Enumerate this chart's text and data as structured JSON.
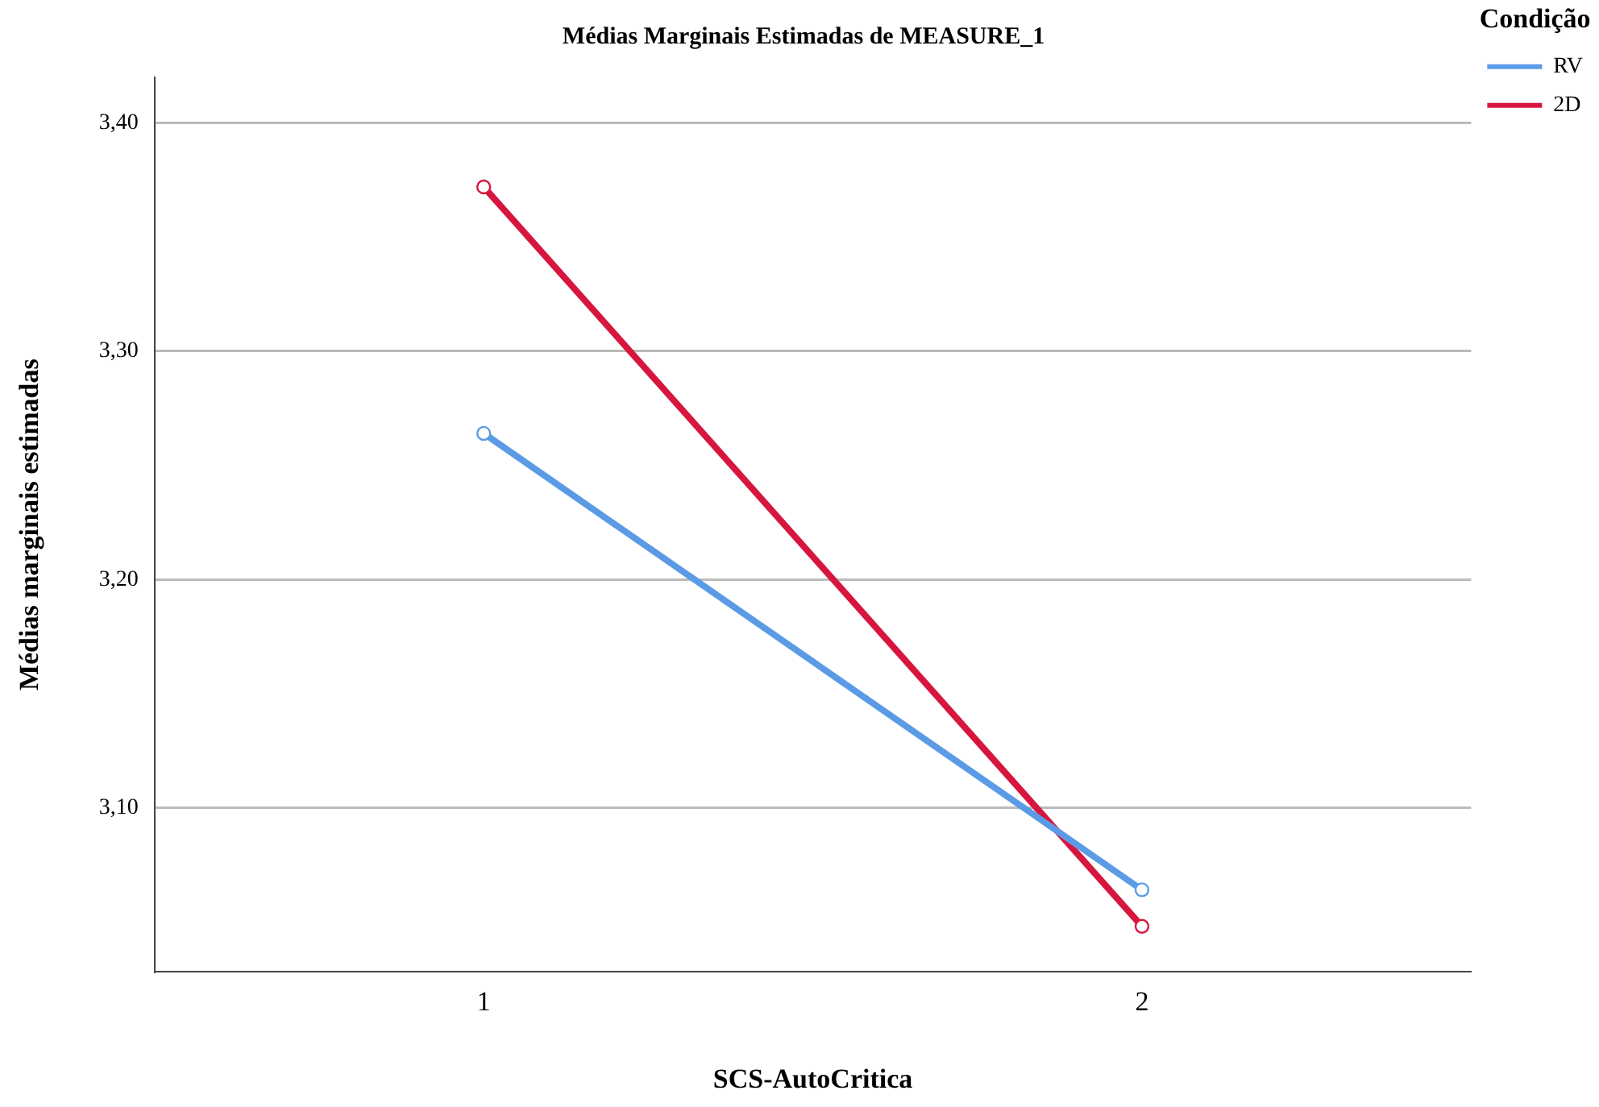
{
  "chart_data": {
    "type": "line",
    "title": "Médias Marginais Estimadas de MEASURE_1",
    "xlabel": "SCS-AutoCritica",
    "ylabel": "Médias marginais estimadas",
    "legend_title": "Condição",
    "categories": [
      "1",
      "2"
    ],
    "series": [
      {
        "name": "RV",
        "color": "#5b9be6",
        "values": [
          3.264,
          3.064
        ]
      },
      {
        "name": "2D",
        "color": "#d6163f",
        "values": [
          3.372,
          3.048
        ]
      }
    ],
    "ylim": [
      3.028,
      3.42
    ],
    "yticks": [
      {
        "value": 3.1,
        "label": "3,10"
      },
      {
        "value": 3.2,
        "label": "3,20"
      },
      {
        "value": 3.3,
        "label": "3,30"
      },
      {
        "value": 3.4,
        "label": "3,40"
      }
    ],
    "grid": "y",
    "legend": "right",
    "marker": "circle",
    "line_style": "solid"
  }
}
